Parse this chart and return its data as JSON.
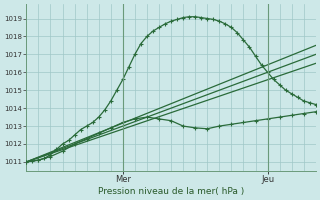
{
  "title": "Pression niveau de la mer( hPa )",
  "bg_color": "#cde8e8",
  "grid_color": "#a0c8c8",
  "line_color": "#2a6b3a",
  "vline_color": "#6a9a7a",
  "ylim": [
    1010.5,
    1019.8
  ],
  "yticks": [
    1011,
    1012,
    1013,
    1014,
    1015,
    1016,
    1017,
    1018,
    1019
  ],
  "xlim": [
    0,
    48
  ],
  "xtick_positions": [
    16,
    40
  ],
  "xtick_labels": [
    "Mer",
    "Jeu"
  ],
  "vlines": [
    16,
    40
  ],
  "series": [
    {
      "x": [
        0,
        1,
        2,
        3,
        4,
        5,
        6,
        7,
        8,
        9,
        10,
        11,
        12,
        13,
        14,
        15,
        16,
        17,
        18,
        19,
        20,
        21,
        22,
        23,
        24,
        25,
        26,
        27,
        28,
        29,
        30,
        31,
        32,
        33,
        34,
        35,
        36,
        37,
        38,
        39,
        40,
        41,
        42,
        43,
        44,
        45,
        46,
        47,
        48
      ],
      "y": [
        1011.0,
        1011.05,
        1011.1,
        1011.2,
        1011.4,
        1011.7,
        1012.0,
        1012.2,
        1012.5,
        1012.8,
        1013.0,
        1013.2,
        1013.5,
        1013.9,
        1014.4,
        1015.0,
        1015.6,
        1016.3,
        1017.0,
        1017.6,
        1018.0,
        1018.3,
        1018.5,
        1018.7,
        1018.85,
        1018.95,
        1019.05,
        1019.1,
        1019.1,
        1019.05,
        1019.0,
        1018.95,
        1018.85,
        1018.7,
        1018.5,
        1018.2,
        1017.8,
        1017.4,
        1016.9,
        1016.4,
        1016.0,
        1015.6,
        1015.3,
        1015.0,
        1014.8,
        1014.6,
        1014.4,
        1014.3,
        1014.2
      ],
      "marker": "+",
      "markersize": 3.5,
      "linewidth": 0.9,
      "zorder": 4
    },
    {
      "x": [
        0,
        2,
        4,
        6,
        8,
        10,
        12,
        14,
        16,
        18,
        20,
        22,
        24,
        26,
        28,
        30,
        32,
        34,
        36,
        38,
        40,
        42,
        44,
        46,
        48
      ],
      "y": [
        1011.0,
        1011.1,
        1011.3,
        1011.6,
        1012.0,
        1012.3,
        1012.6,
        1012.9,
        1013.2,
        1013.4,
        1013.5,
        1013.4,
        1013.3,
        1013.0,
        1012.9,
        1012.85,
        1013.0,
        1013.1,
        1013.2,
        1013.3,
        1013.4,
        1013.5,
        1013.6,
        1013.7,
        1013.8
      ],
      "marker": "+",
      "markersize": 3.5,
      "linewidth": 0.9,
      "zorder": 4
    },
    {
      "x": [
        0,
        48
      ],
      "y": [
        1011.0,
        1016.5
      ],
      "marker": null,
      "markersize": 0,
      "linewidth": 0.9,
      "zorder": 3
    },
    {
      "x": [
        0,
        48
      ],
      "y": [
        1011.0,
        1017.0
      ],
      "marker": null,
      "markersize": 0,
      "linewidth": 0.9,
      "zorder": 3
    },
    {
      "x": [
        0,
        48
      ],
      "y": [
        1011.0,
        1017.5
      ],
      "marker": null,
      "markersize": 0,
      "linewidth": 0.9,
      "zorder": 3
    }
  ]
}
